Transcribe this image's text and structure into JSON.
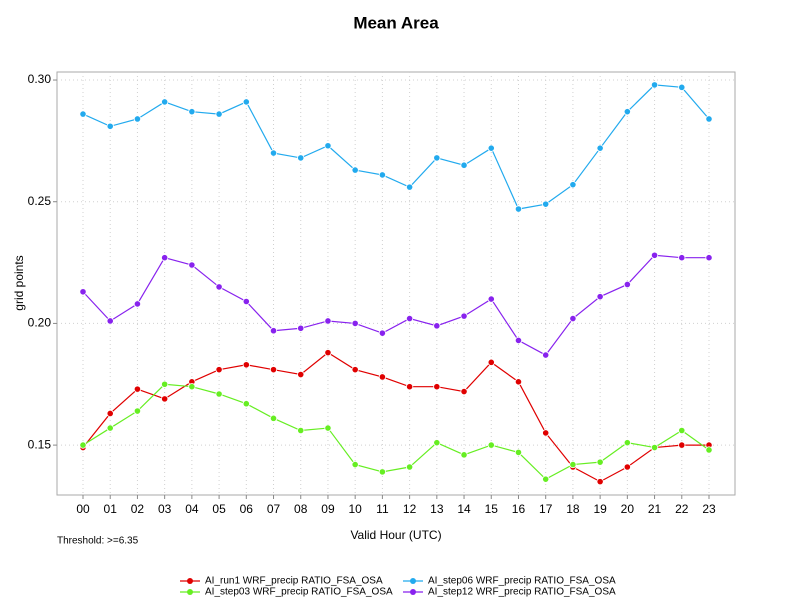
{
  "chart_data": {
    "type": "line",
    "title": "Mean Area",
    "x_label": "Valid Hour (UTC)",
    "y_label": "grid points",
    "annotation": "Threshold: >=6.35",
    "categories": [
      "00",
      "01",
      "02",
      "03",
      "04",
      "05",
      "06",
      "07",
      "08",
      "09",
      "10",
      "11",
      "12",
      "13",
      "14",
      "15",
      "16",
      "17",
      "18",
      "19",
      "20",
      "21",
      "22",
      "23"
    ],
    "ylim": [
      0.1295,
      0.3033
    ],
    "yticks": [
      0.15,
      {
        "value": 0.2,
        "label": "0.20"
      },
      0.25,
      {
        "value": 0.3,
        "label": "0.30"
      }
    ],
    "grid": true,
    "legend": "bottom",
    "series": [
      {
        "name": "AI_run1 WRF_precip RATIO_FSA_OSA",
        "color": "#e00000",
        "values": [
          0.149,
          0.163,
          0.173,
          0.169,
          0.176,
          0.181,
          0.183,
          0.181,
          0.179,
          0.188,
          0.181,
          0.178,
          0.174,
          0.174,
          0.172,
          0.184,
          0.176,
          0.155,
          0.141,
          0.135,
          0.141,
          0.149,
          0.15,
          0.15
        ]
      },
      {
        "name": "AI_step03 WRF_precip RATIO_FSA_OSA",
        "color": "#66ee22",
        "values": [
          0.15,
          0.157,
          0.164,
          0.175,
          0.174,
          0.171,
          0.167,
          0.161,
          0.156,
          0.157,
          0.142,
          0.139,
          0.141,
          0.151,
          0.146,
          0.15,
          0.147,
          0.136,
          0.142,
          0.143,
          0.151,
          0.149,
          0.156,
          0.148
        ]
      },
      {
        "name": "AI_step06 WRF_precip RATIO_FSA_OSA",
        "color": "#22aaee",
        "values": [
          0.286,
          0.281,
          0.284,
          0.291,
          0.287,
          0.286,
          0.291,
          0.27,
          0.268,
          0.273,
          0.263,
          0.261,
          0.256,
          0.268,
          0.265,
          0.272,
          0.247,
          0.249,
          0.257,
          0.272,
          0.287,
          0.298,
          0.297,
          0.284
        ]
      },
      {
        "name": "AI_step12 WRF_precip RATIO_FSA_OSA",
        "color": "#8822ee",
        "values": [
          0.213,
          0.201,
          0.208,
          0.227,
          0.224,
          0.215,
          0.209,
          0.197,
          0.198,
          0.201,
          0.2,
          0.196,
          0.202,
          0.199,
          0.203,
          0.21,
          0.193,
          0.187,
          0.202,
          0.211,
          0.216,
          0.228,
          0.227,
          0.227
        ]
      }
    ]
  }
}
